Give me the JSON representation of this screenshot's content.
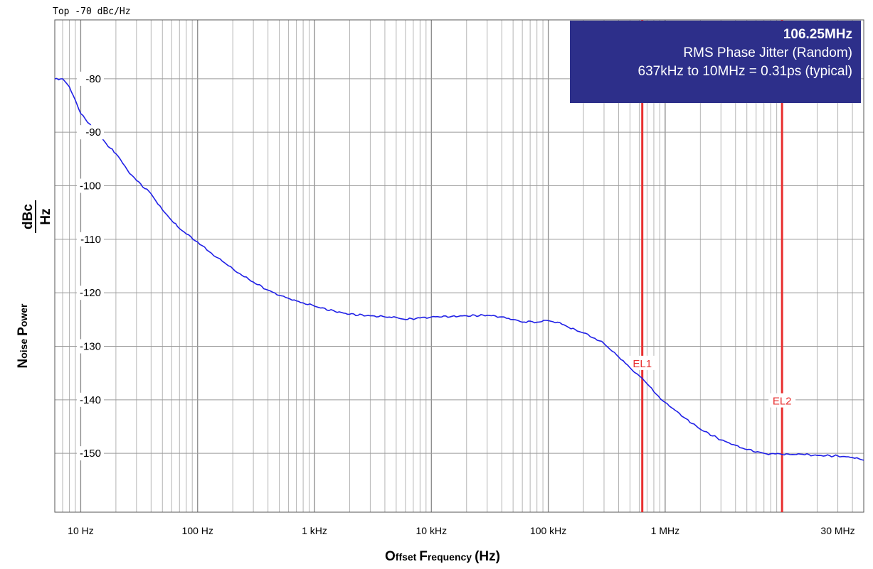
{
  "chart_data": {
    "type": "line",
    "top_label": "Top -70 dBc/Hz",
    "ylabel": {
      "part1_cap": "N",
      "part1_rest": "oise ",
      "part2_cap": "P",
      "part2_rest": "ower",
      "unit_num": "dBc",
      "unit_den": "Hz"
    },
    "xlabel": {
      "part1_cap": "O",
      "part1_rest": "ffset ",
      "part2_cap": "F",
      "part2_rest": "requency",
      "unit": "(Hz)"
    },
    "x_scale": "log",
    "xlim": [
      6,
      50000000
    ],
    "ylim": [
      -161,
      -69
    ],
    "y_ticks": [
      -80,
      -90,
      -100,
      -110,
      -120,
      -130,
      -140,
      -150
    ],
    "y_tick_labels": [
      "-80",
      "-90",
      "-100",
      "-110",
      "-120",
      "-130",
      "-140",
      "-150"
    ],
    "x_ticks": [
      10,
      100,
      1000,
      10000,
      100000,
      1000000,
      30000000
    ],
    "x_tick_labels": [
      "10 Hz",
      "100 Hz",
      "1 kHz",
      "10 kHz",
      "100 kHz",
      "1 MHz",
      "30 MHz"
    ],
    "grid": true,
    "line_color": "#2020e6",
    "marker_color": "#e83030",
    "series": [
      {
        "x": [
          6,
          7,
          8,
          9,
          10,
          12,
          15,
          18,
          20,
          25,
          30,
          40,
          50,
          60,
          70,
          80,
          100,
          120,
          150,
          200,
          250,
          300,
          400,
          500,
          700,
          1000,
          1500,
          2000,
          3000,
          4000,
          5000,
          6000,
          8000,
          10000,
          15000,
          20000,
          30000,
          40000,
          50000,
          60000,
          70000,
          80000,
          100000,
          120000,
          150000,
          200000,
          250000,
          300000,
          400000,
          500000,
          600000,
          637000,
          700000,
          800000,
          1000000,
          1500000,
          2000000,
          3000000,
          4000000,
          5000000,
          7000000,
          10000000,
          15000000,
          20000000,
          30000000,
          40000000,
          50000000
        ],
        "y": [
          -80,
          -80,
          -81.5,
          -84,
          -86.5,
          -88.5,
          -91,
          -93,
          -94,
          -97,
          -99,
          -101.5,
          -104.5,
          -106.5,
          -108,
          -109,
          -110.5,
          -112,
          -113.5,
          -115.5,
          -117,
          -118,
          -119.5,
          -120.5,
          -121.5,
          -122.5,
          -123.5,
          -124,
          -124.3,
          -124.5,
          -124.6,
          -125,
          -124.7,
          -124.5,
          -124.4,
          -124.3,
          -124.2,
          -124.5,
          -125,
          -125.5,
          -125.3,
          -125.5,
          -125.2,
          -125.5,
          -126.5,
          -127.5,
          -128.5,
          -129.5,
          -132,
          -134,
          -135.5,
          -136,
          -137,
          -138.5,
          -140.5,
          -143.5,
          -145.5,
          -147.5,
          -148.5,
          -149.3,
          -150,
          -150.2,
          -150.2,
          -150.4,
          -150.5,
          -150.8,
          -151.3
        ]
      }
    ],
    "markers": [
      {
        "label": "EL1",
        "x": 637000,
        "label_y": -133.5
      },
      {
        "label": "EL2",
        "x": 10000000,
        "label_y": -140.5
      }
    ],
    "annotation": {
      "title": "106.25MHz",
      "line2": "RMS Phase Jitter  (Random)",
      "line3": "637kHz to 10MHz = 0.31ps (typical)"
    }
  }
}
